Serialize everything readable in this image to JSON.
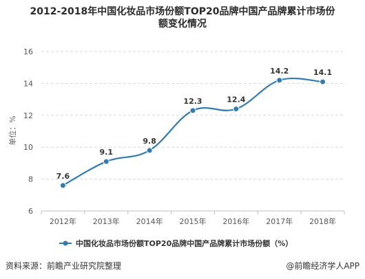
{
  "title_line1": "2012-2018年中国化妆品市场份额TOP20品牌中国产品牌累计市场份",
  "title_line2": "额变化情况",
  "footer": {
    "source": "资料来源：前瞻产业研究院整理",
    "brand": "@前瞻经济学人APP"
  },
  "chart_data": {
    "type": "line",
    "title": "2012-2018年中国化妆品市场份额TOP20品牌中国产品牌累计市场份额变化情况",
    "categories": [
      "2012年",
      "2013年",
      "2014年",
      "2015年",
      "2016年",
      "2017年",
      "2018年"
    ],
    "series": [
      {
        "name": "中国化妆品市场份额TOP20品牌中国产品牌累计市场份额（%）",
        "values": [
          7.6,
          9.1,
          9.8,
          12.3,
          12.4,
          14.2,
          14.1
        ],
        "color": "#2e7bb6"
      }
    ],
    "ylabel": "单位：%",
    "xlabel": "",
    "ylim": [
      6,
      16
    ],
    "yticks": [
      6,
      8,
      10,
      12,
      14,
      16
    ],
    "data_labels": [
      "7.6",
      "9.1",
      "9.8",
      "12.3",
      "12.4",
      "14.2",
      "14.1"
    ],
    "grid": "horizontal-dashed",
    "legend": "bottom",
    "smooth": true
  }
}
